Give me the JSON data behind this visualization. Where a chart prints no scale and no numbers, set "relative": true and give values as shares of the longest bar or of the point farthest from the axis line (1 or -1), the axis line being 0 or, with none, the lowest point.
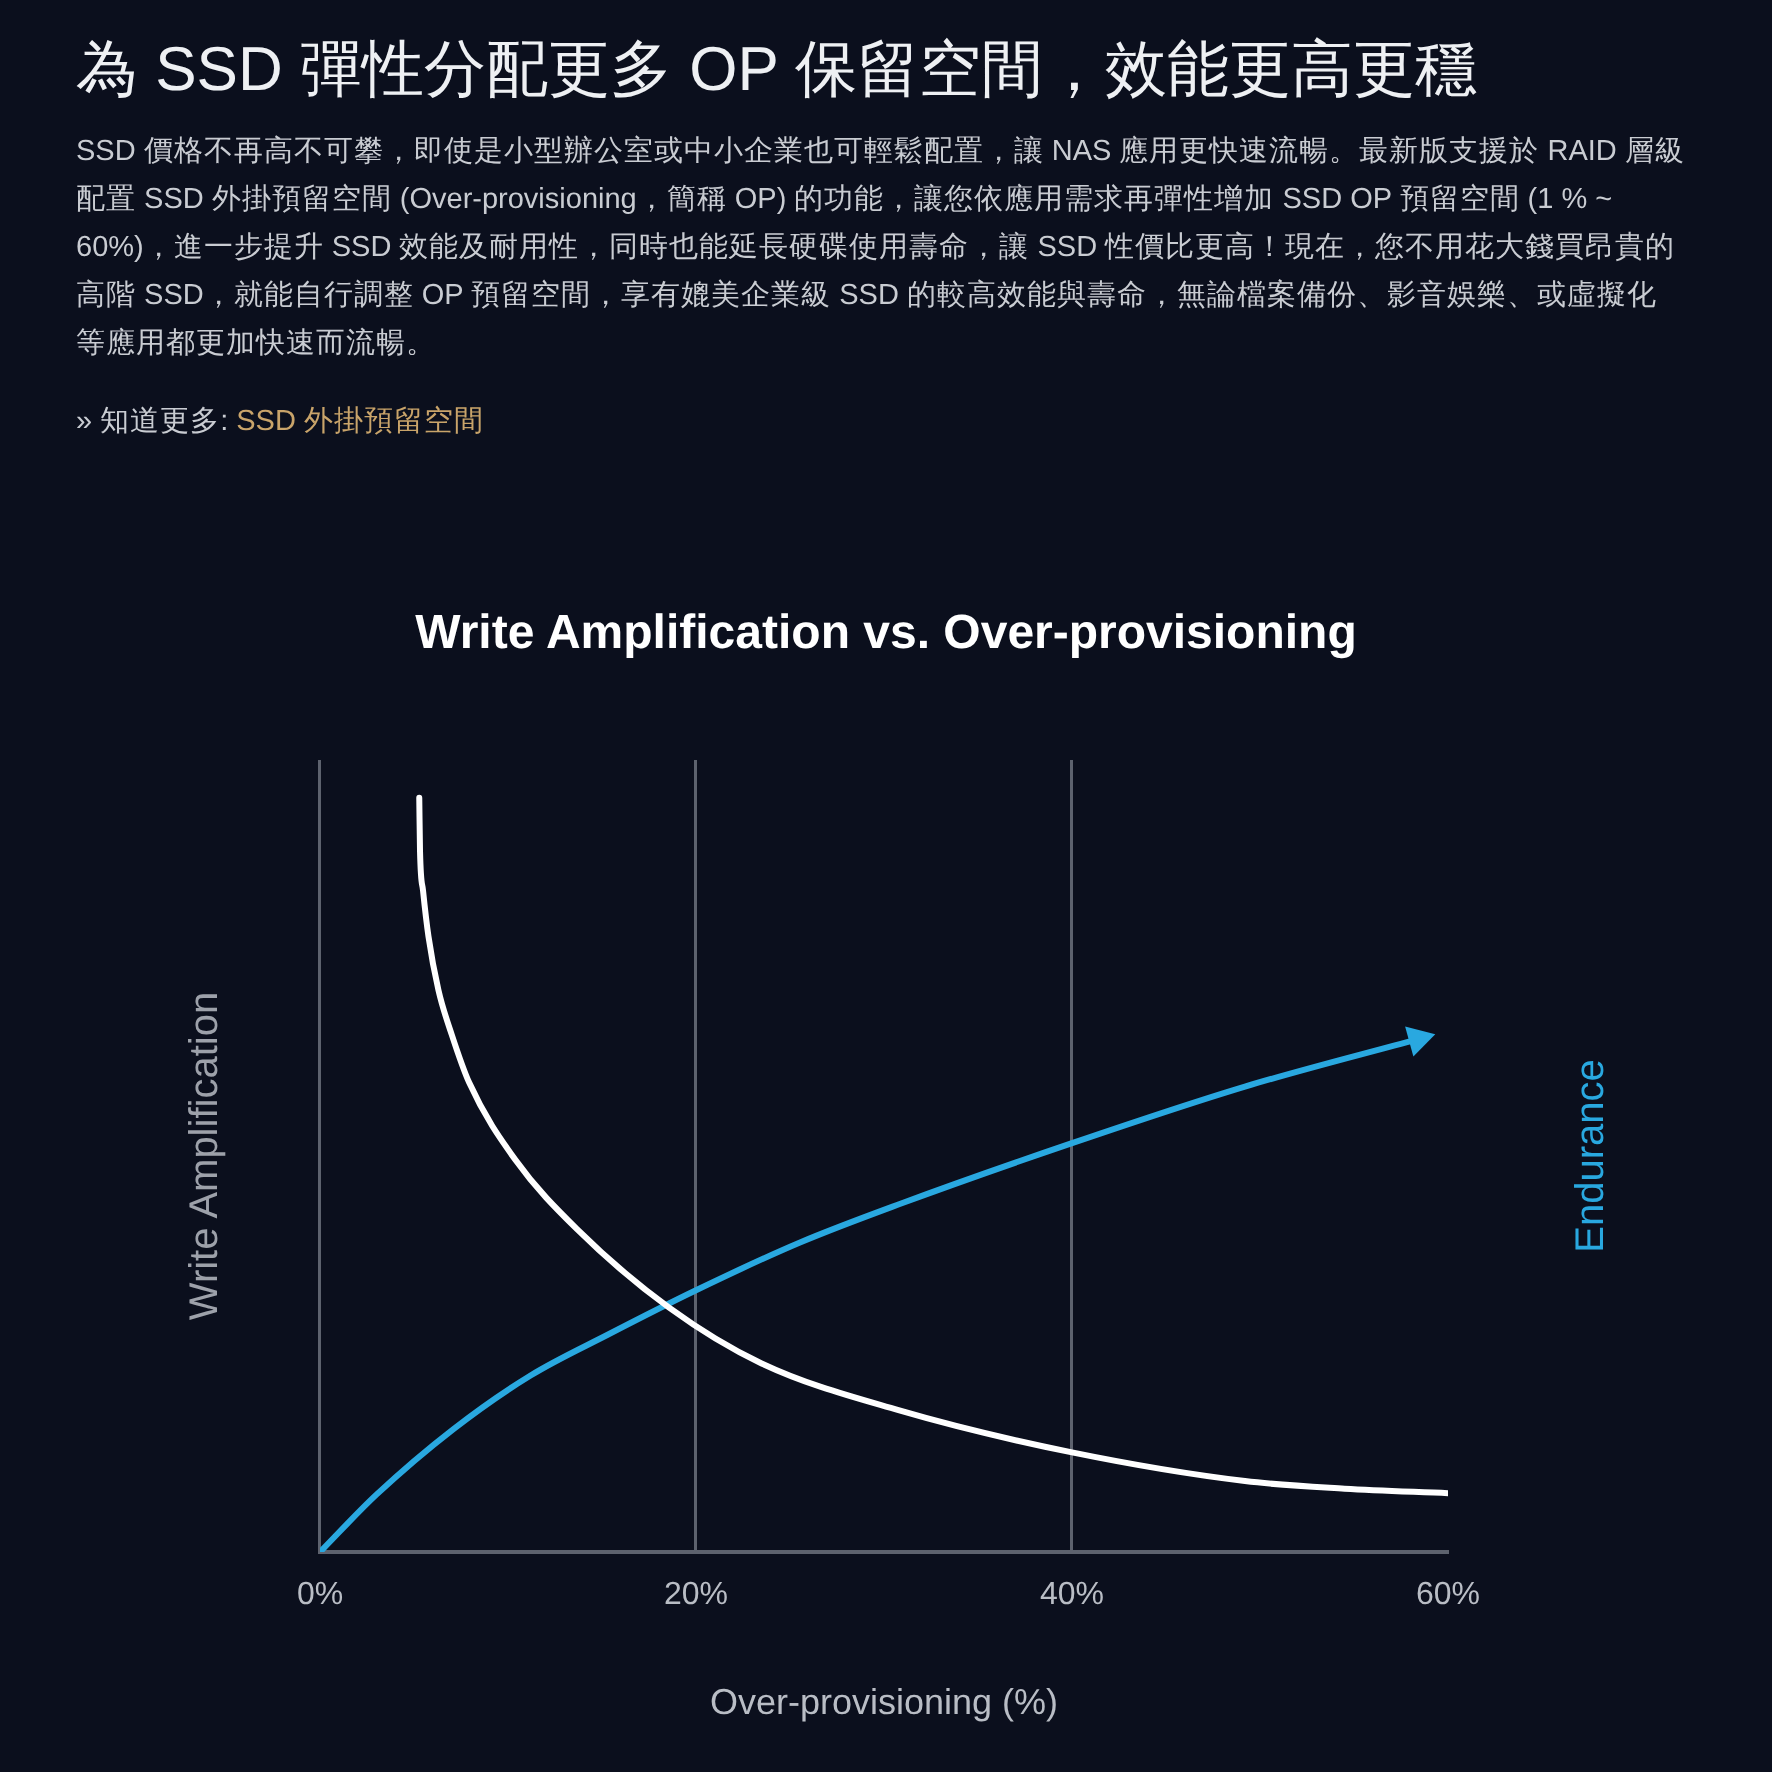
{
  "chart_data": {
    "type": "line",
    "title": "為 SSD 彈性分配更多 OP 保留空間，效能更高更穩",
    "subtitle": "Write Amplification vs. Over-provisioning",
    "annotations": [
      "SSD 價格不再高不可攀，即使是小型辦公室或中小企業也可輕鬆配置，讓 NAS 應用更快速流暢。最新版支援於 RAID 層級配置 SSD 外掛預留空間 (Over-provisioning，簡稱 OP) 的功能，讓您依應用需求再彈性增加 SSD OP 預留空間 (1 % ~ 60%)，進一步提升 SSD 效能及耐用性，同時也能延長硬碟使用壽命，讓 SSD 性價比更高！現在，您不用花大錢買昂貴的高階 SSD，就能自行調整 OP 預留空間，享有媲美企業級 SSD 的較高效能與壽命，無論檔案備份、影音娛樂、或虛擬化等應用都更加快速而流暢。",
      "» 知道更多:",
      "SSD 外掛預留空間"
    ],
    "xlabel": "Over-provisioning (%)",
    "ylabel": "Write Amplification",
    "y2label": "Endurance",
    "relative": true,
    "xlim": [
      0,
      60
    ],
    "xticks": [
      {
        "value": 0,
        "label": "0%"
      },
      {
        "value": 20,
        "label": "20%"
      },
      {
        "value": 40,
        "label": "40%"
      },
      {
        "value": 60,
        "label": "60%"
      }
    ],
    "grid": "x",
    "legend": false,
    "marker": "none",
    "series": [
      {
        "color": "#ffffff",
        "x": [
          5.28,
          5.32,
          5.48,
          5.77,
          6.3,
          7.02,
          7.94,
          10.39,
          13.67,
          18.57,
          23.49,
          30.77,
          40,
          49.2,
          54.5,
          60
        ],
        "values": [
          1,
          0.929,
          0.877,
          0.816,
          0.745,
          0.685,
          0.622,
          0.52,
          0.428,
          0.324,
          0.25,
          0.188,
          0.132,
          0.094,
          0.084,
          0.078
        ]
      },
      {
        "color": "#29a8e0",
        "x": [
          0,
          3,
          7.1,
          11.2,
          15.3,
          20,
          25.5,
          30.8,
          40,
          49.2,
          58.4
        ],
        "values": [
          0,
          0.076,
          0.163,
          0.234,
          0.288,
          0.347,
          0.41,
          0.461,
          0.542,
          0.617,
          0.68
        ]
      }
    ]
  }
}
